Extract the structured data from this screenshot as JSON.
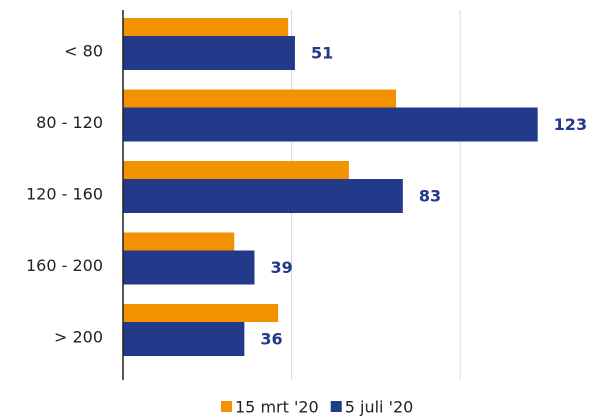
{
  "chart_data": {
    "type": "bar",
    "orientation": "horizontal",
    "categories": [
      "< 80",
      "80 - 120",
      "120 - 160",
      "160 - 200",
      "> 200"
    ],
    "series": [
      {
        "name": "15 mrt '20",
        "color": "#f39200",
        "values": [
          49,
          81,
          67,
          33,
          46
        ]
      },
      {
        "name": "5 juli '20",
        "color": "#233a8b",
        "values": [
          51,
          123,
          83,
          39,
          36
        ],
        "show_labels": true
      }
    ],
    "xlim": [
      0,
      140
    ],
    "xticks": [
      50,
      100
    ],
    "grid": true,
    "legend": "bottom"
  }
}
